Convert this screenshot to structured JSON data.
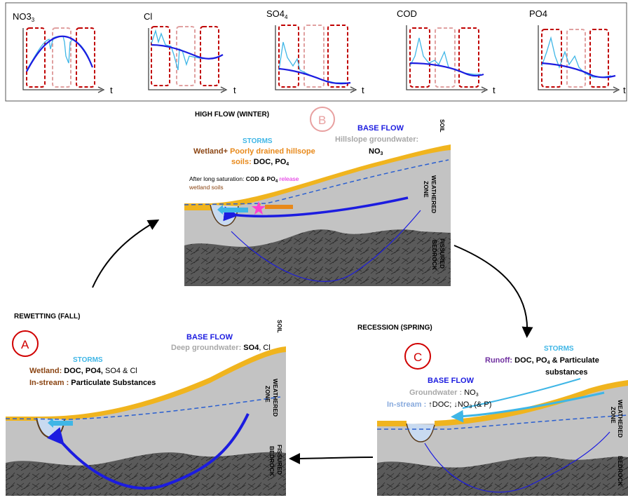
{
  "colors": {
    "storms": "#3fb6e6",
    "wetland": "#8b4513",
    "hillslope_soil": "#e8891a",
    "base_flow": "#1c1ce0",
    "groundwater_gray": "#a8a8a8",
    "runoff_purple": "#7030a0",
    "release_magenta": "#e020e0",
    "soil_yellow": "#f0b41e",
    "weathered_gray": "#c3c3c3",
    "bedrock_gray": "#5a5a5a",
    "window_red": "#c00000",
    "window_pink": "#e0a0a0",
    "circle_b": "#e8a0a0",
    "circle_ac": "#d00000"
  },
  "top_panel": {
    "axis_label": "t",
    "charts": [
      {
        "name": "NO3",
        "sub": "3"
      },
      {
        "name": "Cl",
        "sub": ""
      },
      {
        "name": "SO4",
        "sub": "4"
      },
      {
        "name": "COD",
        "sub": ""
      },
      {
        "name": "PO4",
        "sub": ""
      }
    ]
  },
  "panel_b": {
    "season": "HIGH FLOW (WINTER)",
    "letter": "B",
    "storms_title": "STORMS",
    "storms_line1": "Wetland+ Poorly drained hillsope",
    "storms_line2a": "soils: ",
    "storms_line2b": "DOC, PO",
    "storms_line2c": "4",
    "after_a": "After long saturation: ",
    "after_b": "COD & PO",
    "after_c": "4",
    "after_d": " release",
    "after_e": "wetland soils",
    "baseflow_title": "BASE FLOW",
    "baseflow_line1": "Hillslope groundwater:",
    "baseflow_line2a": "NO",
    "baseflow_line2b": "3",
    "soil_label": "SOIL",
    "weathered_label": "WEATHERED ZONE",
    "weathered_l1": "WEATHERED",
    "weathered_l2": "ZONE",
    "bedrock_l1": "FISSURED",
    "bedrock_l2": "BEDROCK"
  },
  "panel_a": {
    "season": "REWETTING (FALL)",
    "letter": "A",
    "storms_title": "STORMS",
    "wetland_a": "Wetland: ",
    "wetland_b": "DOC, PO4, ",
    "wetland_c": "SO4 & Cl",
    "instream_a": "In-stream : ",
    "instream_b": "Particulate Substances",
    "baseflow_title": "BASE FLOW",
    "baseflow_a": "Deep groundwater: ",
    "baseflow_b": "SO4",
    "baseflow_c": ", Cl",
    "soil_label": "SOIL",
    "weathered_l1": "WEATHERED",
    "weathered_l2": "ZONE",
    "bedrock_l1": "FISSURED",
    "bedrock_l2": "BEDROCK"
  },
  "panel_c": {
    "season": "RECESSION (SPRING)",
    "letter": "C",
    "storms_title": "STORMS",
    "runoff_a": "Runoff: ",
    "runoff_b": "DOC, PO",
    "runoff_c": "4",
    "runoff_d": " & Particulate",
    "runoff_e": "substances",
    "baseflow_title": "BASE FLOW",
    "gw_a": "Groundwater : ",
    "gw_b": "NO",
    "gw_c": "3",
    "is_a": "In-stream : ",
    "is_b": "↑DOC; ↓NO",
    "is_c": "3",
    "is_d": " (& P)",
    "weathered_l1": "WEATHERED",
    "weathered_l2": "ZONE",
    "bedrock_l1": "BEDROCK"
  }
}
